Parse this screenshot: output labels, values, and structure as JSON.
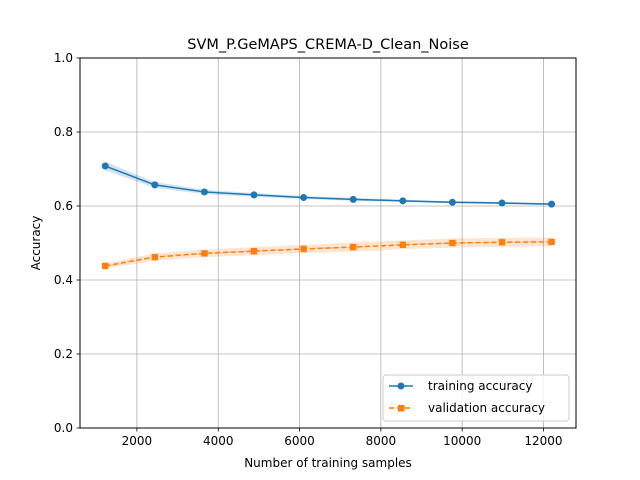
{
  "chart_data": {
    "type": "line",
    "title": "SVM_P.GeMAPS_CREMA-D_Clean_Noise",
    "xlabel": "Number of training samples",
    "ylabel": "Accuracy",
    "xlim": [
      600,
      12800
    ],
    "ylim": [
      0.0,
      1.0
    ],
    "xticks": [
      2000,
      4000,
      6000,
      8000,
      10000,
      12000
    ],
    "xtick_labels": [
      "2000",
      "4000",
      "6000",
      "8000",
      "10000",
      "12000"
    ],
    "yticks": [
      0.0,
      0.2,
      0.4,
      0.6,
      0.8,
      1.0
    ],
    "ytick_labels": [
      "0.0",
      "0.2",
      "0.4",
      "0.6",
      "0.8",
      "1.0"
    ],
    "grid": true,
    "legend_position": "lower-right",
    "x": [
      1220,
      2440,
      3660,
      4880,
      6100,
      7320,
      8540,
      9760,
      10980,
      12200
    ],
    "series": [
      {
        "name": "training accuracy",
        "color": "#1f77b4",
        "style": "solid",
        "marker": "circle",
        "values": [
          0.708,
          0.657,
          0.638,
          0.63,
          0.623,
          0.618,
          0.614,
          0.61,
          0.608,
          0.605
        ],
        "band": [
          0.012,
          0.008,
          0.006,
          0.005,
          0.004,
          0.004,
          0.003,
          0.003,
          0.003,
          0.003
        ]
      },
      {
        "name": "validation accuracy",
        "color": "#ff7f0e",
        "style": "dashed",
        "marker": "square",
        "values": [
          0.438,
          0.462,
          0.472,
          0.478,
          0.484,
          0.489,
          0.495,
          0.5,
          0.502,
          0.503
        ],
        "band": [
          0.007,
          0.01,
          0.01,
          0.011,
          0.011,
          0.012,
          0.012,
          0.012,
          0.012,
          0.012
        ]
      }
    ]
  }
}
